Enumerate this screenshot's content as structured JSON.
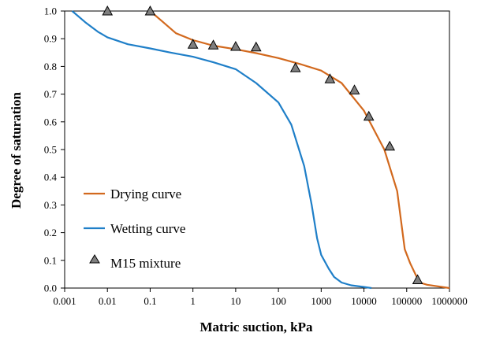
{
  "colors": {
    "drying": "#d2691e",
    "wetting": "#1f7fc8",
    "marker": "#7f7f7f",
    "marker_edge": "#000000",
    "axis": "#000000"
  },
  "chart_data": {
    "type": "scatter",
    "xlabel": "Matric suction, kPa",
    "ylabel": "Degree of saturation",
    "xscale": "log",
    "xlim": [
      0.001,
      1000000
    ],
    "ylim": [
      0,
      1
    ],
    "x_ticks": [
      "0.001",
      "0.01",
      "0.1",
      "1",
      "10",
      "100",
      "1000",
      "10000",
      "100000",
      "1000000"
    ],
    "y_ticks": [
      "0.0",
      "0.1",
      "0.2",
      "0.3",
      "0.4",
      "0.5",
      "0.6",
      "0.7",
      "0.8",
      "0.9",
      "1.0"
    ],
    "grid": false,
    "legend_position": "bottom-left",
    "series": [
      {
        "name": "Drying curve",
        "kind": "line",
        "color": "#d2691e",
        "x": [
          0.1,
          0.2,
          0.4,
          1,
          3,
          10,
          30,
          100,
          300,
          1000,
          3000,
          10000,
          30000,
          60000,
          90000,
          120000,
          160000,
          200000,
          300000,
          1000000
        ],
        "y": [
          1.0,
          0.96,
          0.92,
          0.895,
          0.875,
          0.862,
          0.848,
          0.83,
          0.81,
          0.785,
          0.74,
          0.64,
          0.5,
          0.35,
          0.14,
          0.09,
          0.05,
          0.02,
          0.012,
          0.0
        ]
      },
      {
        "name": "Wetting curve",
        "kind": "line",
        "color": "#1f7fc8",
        "x": [
          0.0015,
          0.003,
          0.006,
          0.01,
          0.03,
          0.1,
          0.3,
          1,
          3,
          10,
          30,
          100,
          200,
          400,
          600,
          800,
          1000,
          1500,
          2000,
          3000,
          5000,
          10000,
          15000
        ],
        "y": [
          1.0,
          0.96,
          0.925,
          0.905,
          0.88,
          0.865,
          0.85,
          0.835,
          0.815,
          0.79,
          0.74,
          0.67,
          0.59,
          0.44,
          0.3,
          0.18,
          0.12,
          0.07,
          0.04,
          0.02,
          0.01,
          0.004,
          0.0
        ]
      },
      {
        "name": "M15 mixture",
        "kind": "marker",
        "marker": "triangle",
        "x": [
          0.01,
          0.1,
          1,
          3,
          10,
          30,
          250,
          1600,
          6000,
          13000,
          40000,
          180000
        ],
        "y": [
          1.0,
          1.0,
          0.88,
          0.877,
          0.872,
          0.87,
          0.795,
          0.755,
          0.715,
          0.62,
          0.512,
          0.03
        ]
      }
    ]
  }
}
